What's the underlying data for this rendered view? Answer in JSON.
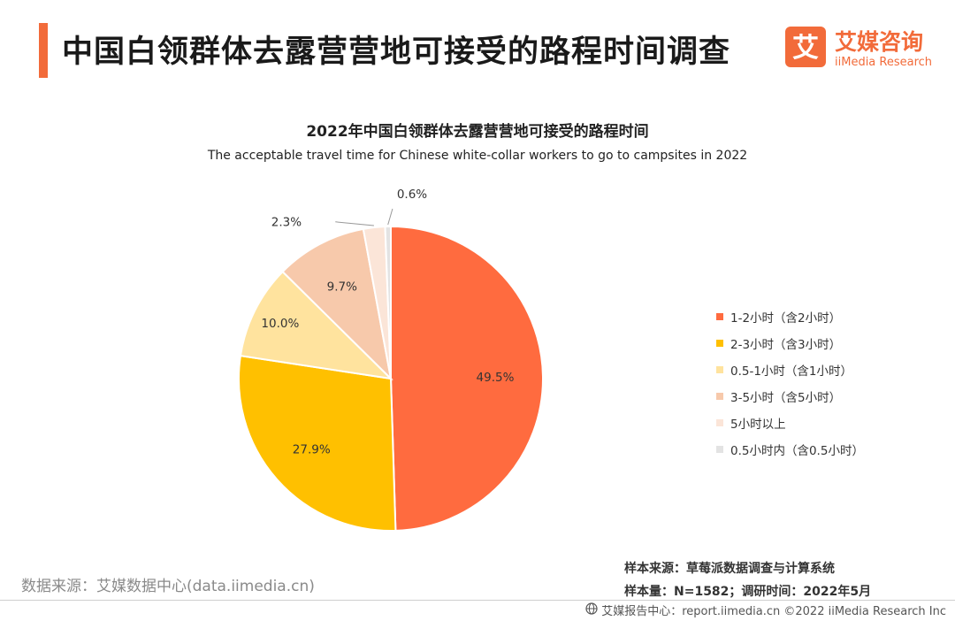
{
  "header": {
    "title": "中国白领群体去露营营地可接受的路程时间调查",
    "logo_cn": "艾媒咨询",
    "logo_en": "iiMedia Research",
    "logo_mark": "艾"
  },
  "chart_data": {
    "type": "pie",
    "title": "2022年中国白领群体去露营营地可接受的路程时间",
    "subtitle": "The acceptable travel time for Chinese white-collar workers to go to campsites in 2022",
    "unit": "%",
    "labels": [
      "1-2小时（含2小时）",
      "2-3小时（含3小时）",
      "0.5-1小时（含1小时）",
      "3-5小时（含5小时）",
      "5小时以上",
      "0.5小时内（含0.5小时）"
    ],
    "values": [
      49.5,
      27.9,
      10.0,
      9.7,
      2.3,
      0.6
    ],
    "value_labels": [
      "49.5%",
      "27.9%",
      "10.0%",
      "9.7%",
      "2.3%",
      "0.6%"
    ],
    "colors": [
      "#ff6b3f",
      "#ffc000",
      "#ffe39e",
      "#f7c9ab",
      "#fbe5d8",
      "#e3e3e3"
    ],
    "legend_position": "right"
  },
  "sources": {
    "left": "数据来源：艾媒数据中心(data.iimedia.cn)",
    "sample_source": "样本来源：草莓派数据调查与计算系统",
    "sample_size": "样本量：N=1582；调研时间：2022年5月"
  },
  "footer": {
    "text": "艾媒报告中心：report.iimedia.cn  ©2022  iiMedia Research  Inc",
    "icon": "globe-icon"
  }
}
